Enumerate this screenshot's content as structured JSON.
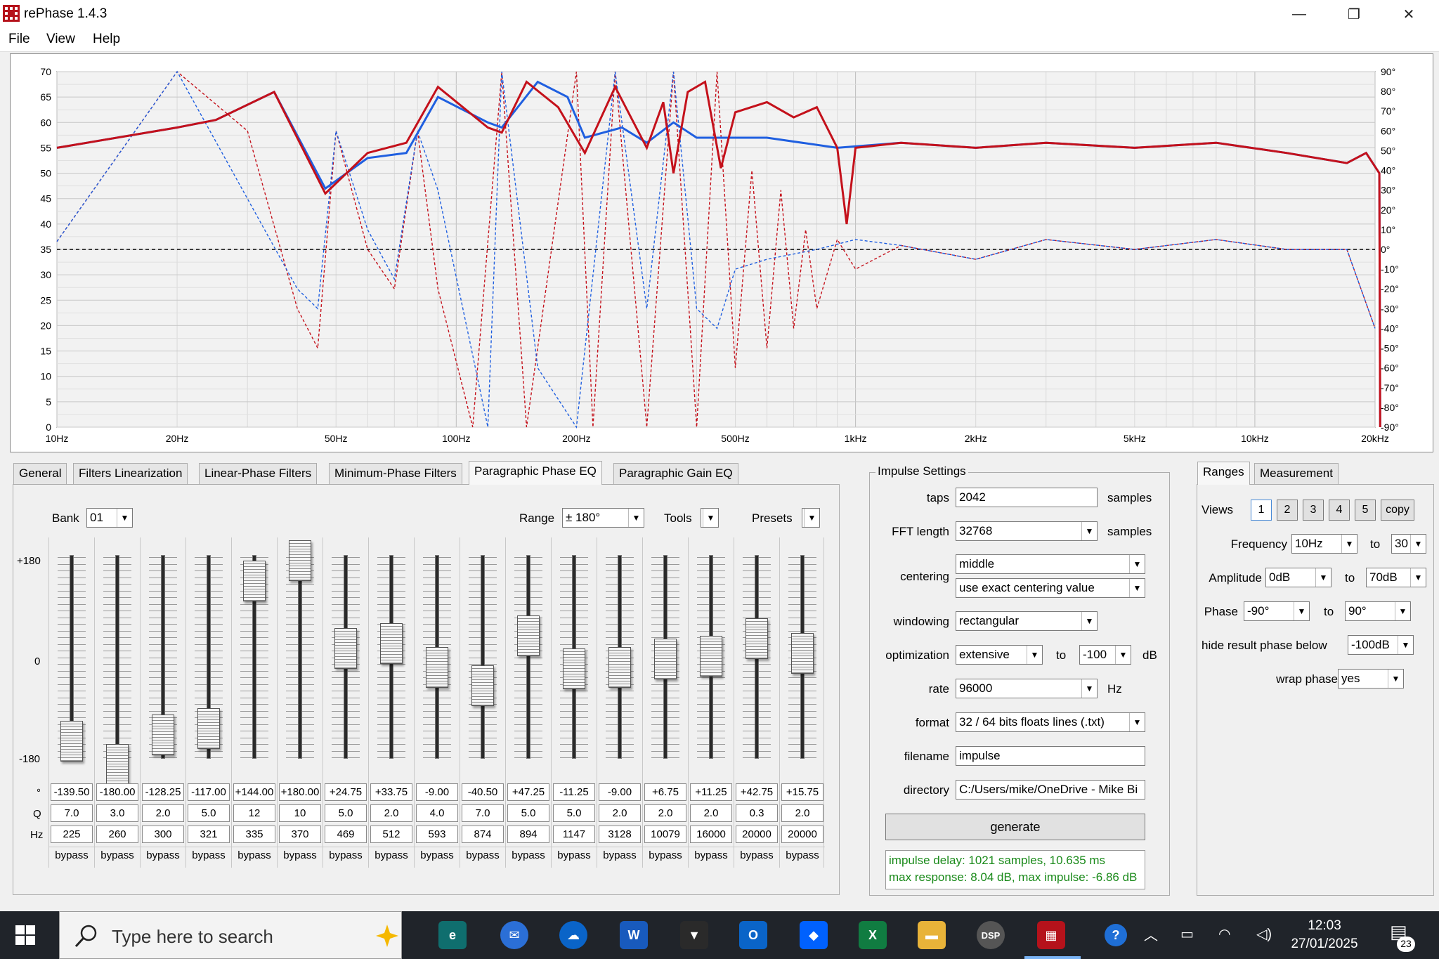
{
  "window": {
    "title": "rePhase 1.4.3",
    "minimize_glyph": "—",
    "maximize_glyph": "❐",
    "close_glyph": "✕"
  },
  "menu": [
    "File",
    "View",
    "Help"
  ],
  "chart": {
    "left_axis_labels": [
      "70",
      "65",
      "60",
      "55",
      "50",
      "45",
      "40",
      "35",
      "30",
      "25",
      "20",
      "15",
      "10",
      "5",
      "0"
    ],
    "right_axis_labels": [
      "90°",
      "80°",
      "70°",
      "60°",
      "50°",
      "40°",
      "30°",
      "20°",
      "10°",
      "0°",
      "-10°",
      "-20°",
      "-30°",
      "-40°",
      "-50°",
      "-60°",
      "-70°",
      "-80°",
      "-90°"
    ],
    "x_labels": [
      "10Hz",
      "20Hz",
      "50Hz",
      "100Hz",
      "200Hz",
      "500Hz",
      "1kHz",
      "2kHz",
      "5kHz",
      "10kHz",
      "20kHz"
    ],
    "colors": {
      "result": "#c4111b",
      "measure": "#1f5fe0",
      "grid": "#d0d0d0",
      "zero_line": "#000000"
    },
    "amplitude_range_db": [
      0,
      70
    ],
    "phase_range_deg": [
      -90,
      90
    ],
    "freq_range_hz": [
      10,
      30000
    ]
  },
  "tabs": [
    "General",
    "Filters Linearization",
    "Linear-Phase Filters",
    "Minimum-Phase Filters",
    "Paragraphic Phase EQ",
    "Paragraphic Gain EQ"
  ],
  "active_tab": "Paragraphic Phase EQ",
  "eq": {
    "bank_label": "Bank",
    "bank_value": "01",
    "range_label": "Range",
    "range_value": "± 180°",
    "tools_label": "Tools",
    "presets_label": "Presets",
    "scale_top": "+180",
    "scale_mid": "0",
    "scale_bot": "-180",
    "row_label_deg": "°",
    "row_label_q": "Q",
    "row_label_hz": "Hz",
    "bands": [
      {
        "deg": "-139.50",
        "q": "7.0",
        "hz": "225",
        "mode": "bypass",
        "level": -139.5
      },
      {
        "deg": "-180.00",
        "q": "3.0",
        "hz": "260",
        "mode": "bypass",
        "level": -180
      },
      {
        "deg": "-128.25",
        "q": "2.0",
        "hz": "300",
        "mode": "bypass",
        "level": -128.25
      },
      {
        "deg": "-117.00",
        "q": "5.0",
        "hz": "321",
        "mode": "bypass",
        "level": -117
      },
      {
        "deg": "+144.00",
        "q": "12",
        "hz": "335",
        "mode": "bypass",
        "level": 144
      },
      {
        "deg": "+180.00",
        "q": "10",
        "hz": "370",
        "mode": "bypass",
        "level": 180
      },
      {
        "deg": "+24.75",
        "q": "5.0",
        "hz": "469",
        "mode": "bypass",
        "level": 24.75
      },
      {
        "deg": "+33.75",
        "q": "2.0",
        "hz": "512",
        "mode": "bypass",
        "level": 33.75
      },
      {
        "deg": "-9.00",
        "q": "4.0",
        "hz": "593",
        "mode": "bypass",
        "level": -9
      },
      {
        "deg": "-40.50",
        "q": "7.0",
        "hz": "874",
        "mode": "bypass",
        "level": -40.5
      },
      {
        "deg": "+47.25",
        "q": "5.0",
        "hz": "894",
        "mode": "bypass",
        "level": 47.25
      },
      {
        "deg": "-11.25",
        "q": "5.0",
        "hz": "1147",
        "mode": "bypass",
        "level": -11.25
      },
      {
        "deg": "-9.00",
        "q": "2.0",
        "hz": "3128",
        "mode": "bypass",
        "level": -9
      },
      {
        "deg": "+6.75",
        "q": "2.0",
        "hz": "10079",
        "mode": "bypass",
        "level": 6.75
      },
      {
        "deg": "+11.25",
        "q": "2.0",
        "hz": "16000",
        "mode": "bypass",
        "level": 11.25
      },
      {
        "deg": "+42.75",
        "q": "0.3",
        "hz": "20000",
        "mode": "bypass",
        "level": 42.75
      },
      {
        "deg": "+15.75",
        "q": "2.0",
        "hz": "20000",
        "mode": "bypass",
        "level": 15.75
      }
    ]
  },
  "impulse": {
    "group_title": "Impulse Settings",
    "taps_label": "taps",
    "taps_value": "2042",
    "taps_unit": "samples",
    "fft_label": "FFT length",
    "fft_value": "32768",
    "fft_unit": "samples",
    "centering_label": "centering",
    "centering_value": "middle",
    "centering_mode": "use exact centering value",
    "windowing_label": "windowing",
    "windowing_value": "rectangular",
    "optimization_label": "optimization",
    "optimization_value": "extensive",
    "optimization_to": "to",
    "optimization_db": "-100",
    "optimization_unit": "dB",
    "rate_label": "rate",
    "rate_value": "96000",
    "rate_unit": "Hz",
    "format_label": "format",
    "format_value": "32 / 64 bits floats lines (.txt)",
    "filename_label": "filename",
    "filename_value": "impulse",
    "directory_label": "directory",
    "directory_value": "C:/Users/mike/OneDrive - Mike Bi",
    "generate_label": "generate",
    "status_line1": "impulse delay: 1021 samples, 10.635 ms",
    "status_line2": "max response: 8.04 dB, max impulse: -6.86 dB"
  },
  "ranges": {
    "tabs": [
      "Ranges",
      "Measurement"
    ],
    "active_tab": "Ranges",
    "views_label": "Views",
    "views": [
      "1",
      "2",
      "3",
      "4",
      "5"
    ],
    "copy_label": "copy",
    "frequency_label": "Frequency",
    "frequency_from": "10Hz",
    "frequency_to_label": "to",
    "frequency_to": "30",
    "amplitude_label": "Amplitude",
    "amplitude_from": "0dB",
    "amplitude_to_label": "to",
    "amplitude_to": "70dB",
    "phase_label": "Phase",
    "phase_from": "-90°",
    "phase_to_label": "to",
    "phase_to": "90°",
    "hide_label": "hide result phase below",
    "hide_value": "-100dB",
    "wrap_label": "wrap phase",
    "wrap_value": "yes"
  },
  "taskbar": {
    "search_placeholder": "Type here to search",
    "time": "12:03",
    "date": "27/01/2025",
    "notification_count": "23",
    "word_letter": "W",
    "excel_letter": "X",
    "outlook_letter": "O",
    "dsp_label": "DSP",
    "help_glyph": "?"
  }
}
